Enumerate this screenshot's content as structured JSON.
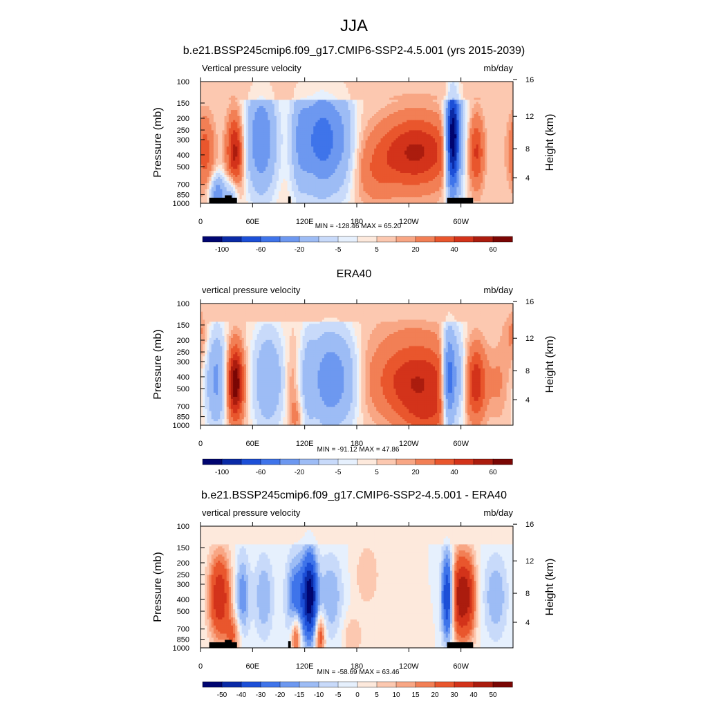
{
  "figure": {
    "main_title": "JJA"
  },
  "chart_data": [
    {
      "type": "heatmap",
      "title": "b.e21.BSSP245cmip6.f09_g17.CMIP6-SSP2-4.5.001 (yrs 2015-2039)",
      "left_label": "Vertical pressure velocity",
      "right_label": "mb/day",
      "ylabel": "Pressure (mb)",
      "y2label": "Height (km)",
      "x_ticks": [
        "0",
        "60E",
        "120E",
        "180",
        "120W",
        "60W"
      ],
      "x_tick_values": [
        0,
        60,
        120,
        180,
        240,
        300
      ],
      "xlim": [
        0,
        360
      ],
      "y_ticks": [
        "100",
        "150",
        "200",
        "250",
        "300",
        "400",
        "500",
        "700",
        "850",
        "1000"
      ],
      "y_tick_values": [
        100,
        150,
        200,
        250,
        300,
        400,
        500,
        700,
        850,
        1000
      ],
      "ylim": [
        1000,
        100
      ],
      "y_scale": "log",
      "y2_ticks": [
        "4",
        "8",
        "12",
        "16"
      ],
      "y2_tick_values": [
        4,
        8,
        12,
        16
      ],
      "stats": "MIN = -128.46  MAX =  65.20",
      "colorbar_levels": [
        "-100",
        "-60",
        "-20",
        "-5",
        "5",
        "20",
        "40",
        "60"
      ],
      "colorbar_colors": [
        "#000570",
        "#0a2aa6",
        "#1c4fd7",
        "#3f74ea",
        "#6d98f0",
        "#9dbcf5",
        "#c8dafa",
        "#e6f0fd",
        "#fde9dc",
        "#fcc8b0",
        "#f8a684",
        "#f27f55",
        "#e9562d",
        "#d3331a",
        "#ab1c0e",
        "#7a0604"
      ],
      "terrain": true,
      "field_key": "model"
    },
    {
      "type": "heatmap",
      "title": "ERA40",
      "left_label": "vertical pressure velocity",
      "right_label": "mb/day",
      "ylabel": "Pressure (mb)",
      "y2label": "Height (km)",
      "x_ticks": [
        "0",
        "60E",
        "120E",
        "180",
        "120W",
        "60W"
      ],
      "x_tick_values": [
        0,
        60,
        120,
        180,
        240,
        300
      ],
      "xlim": [
        0,
        360
      ],
      "y_ticks": [
        "100",
        "150",
        "200",
        "250",
        "300",
        "400",
        "500",
        "700",
        "850",
        "1000"
      ],
      "y_tick_values": [
        100,
        150,
        200,
        250,
        300,
        400,
        500,
        700,
        850,
        1000
      ],
      "ylim": [
        1000,
        100
      ],
      "y_scale": "log",
      "y2_ticks": [
        "4",
        "8",
        "12",
        "16"
      ],
      "y2_tick_values": [
        4,
        8,
        12,
        16
      ],
      "stats": "MIN = -91.12  MAX =  47.86",
      "colorbar_levels": [
        "-100",
        "-60",
        "-20",
        "-5",
        "5",
        "20",
        "40",
        "60"
      ],
      "colorbar_colors": [
        "#000570",
        "#0a2aa6",
        "#1c4fd7",
        "#3f74ea",
        "#6d98f0",
        "#9dbcf5",
        "#c8dafa",
        "#e6f0fd",
        "#fde9dc",
        "#fcc8b0",
        "#f8a684",
        "#f27f55",
        "#e9562d",
        "#d3331a",
        "#ab1c0e",
        "#7a0604"
      ],
      "terrain": false,
      "field_key": "obs"
    },
    {
      "type": "heatmap",
      "title": "b.e21.BSSP245cmip6.f09_g17.CMIP6-SSP2-4.5.001 - ERA40",
      "left_label": "vertical pressure velocity",
      "right_label": "mb/day",
      "ylabel": "Pressure (mb)",
      "y2label": "Height (km)",
      "x_ticks": [
        "0",
        "60E",
        "120E",
        "180",
        "120W",
        "60W"
      ],
      "x_tick_values": [
        0,
        60,
        120,
        180,
        240,
        300
      ],
      "xlim": [
        0,
        360
      ],
      "y_ticks": [
        "100",
        "150",
        "200",
        "250",
        "300",
        "400",
        "500",
        "700",
        "850",
        "1000"
      ],
      "y_tick_values": [
        100,
        150,
        200,
        250,
        300,
        400,
        500,
        700,
        850,
        1000
      ],
      "ylim": [
        1000,
        100
      ],
      "y_scale": "log",
      "y2_ticks": [
        "4",
        "8",
        "12",
        "16"
      ],
      "y2_tick_values": [
        4,
        8,
        12,
        16
      ],
      "stats": "MIN = -58.69  MAX =  63.46",
      "colorbar_levels": [
        "-50",
        "-40",
        "-30",
        "-20",
        "-15",
        "-10",
        "-5",
        "0",
        "5",
        "10",
        "15",
        "20",
        "30",
        "40",
        "50"
      ],
      "colorbar_colors": [
        "#000570",
        "#0a2aa6",
        "#1c4fd7",
        "#3f74ea",
        "#6d98f0",
        "#9dbcf5",
        "#c8dafa",
        "#e6f0fd",
        "#fde9dc",
        "#fcc8b0",
        "#f8a684",
        "#f27f55",
        "#e9562d",
        "#d3331a",
        "#ab1c0e",
        "#7a0604"
      ],
      "terrain": true,
      "field_key": "diff"
    }
  ]
}
